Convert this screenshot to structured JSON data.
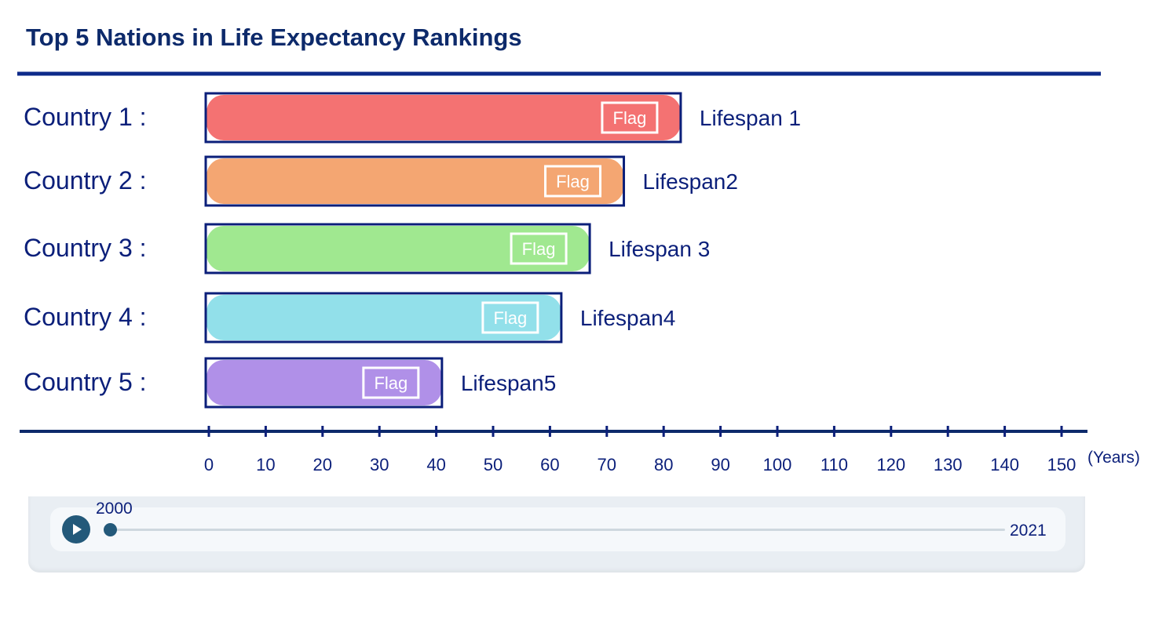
{
  "title": "Top 5 Nations in Life Expectancy Rankings",
  "chart_data": {
    "type": "bar",
    "orientation": "horizontal",
    "title": "Top 5 Nations in Life Expectancy Rankings",
    "categories": [
      "Country 1 :",
      "Country 2 :",
      "Country 3 :",
      "Country 4 :",
      "Country 5 :"
    ],
    "values": [
      83,
      73,
      67,
      62,
      41
    ],
    "bar_labels": [
      "Lifespan 1",
      "Lifespan2",
      "Lifespan 3",
      "Lifespan4",
      "Lifespan5"
    ],
    "bar_inner_label": "Flag",
    "colors": [
      "#f47272",
      "#f4a672",
      "#a0e890",
      "#92e0ea",
      "#b090e8"
    ],
    "outline_color": "#0b1f7a",
    "xlim": [
      0,
      150
    ],
    "xticks": [
      0,
      10,
      20,
      30,
      40,
      50,
      60,
      70,
      80,
      90,
      100,
      110,
      120,
      130,
      140,
      150
    ],
    "xlabel": "(Years)",
    "grid": false
  },
  "slider": {
    "play_icon": "play-icon",
    "current_label": "2000",
    "end_label": "2021",
    "min": 2000,
    "max": 2021,
    "value": 2000,
    "accent": "#23597a"
  }
}
